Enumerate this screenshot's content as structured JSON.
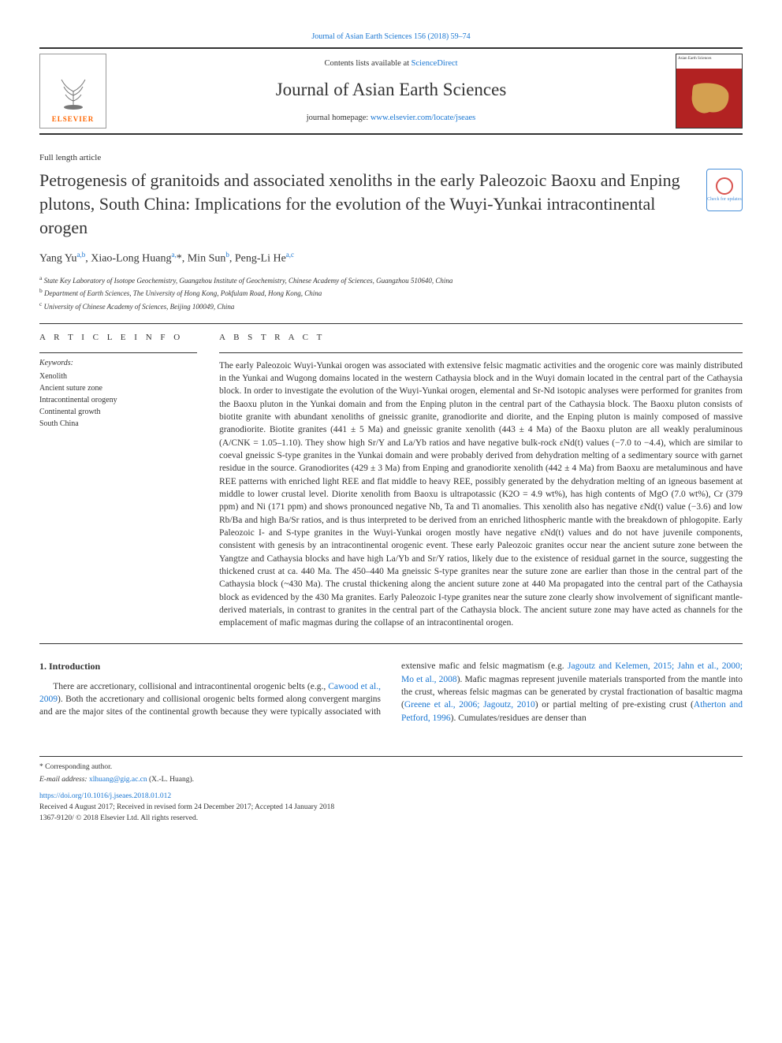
{
  "top_link_journal": "Journal of Asian Earth Sciences 156 (2018) 59–74",
  "header": {
    "contents_prefix": "Contents lists available at ",
    "contents_link": "ScienceDirect",
    "journal_name": "Journal of Asian Earth Sciences",
    "homepage_prefix": "journal homepage: ",
    "homepage_url": "www.elsevier.com/locate/jseaes",
    "publisher_logo_text": "ELSEVIER",
    "cover_label": "Asian Earth Sciences"
  },
  "article_type": "Full length article",
  "title": "Petrogenesis of granitoids and associated xenoliths in the early Paleozoic Baoxu and Enping plutons, South China: Implications for the evolution of the Wuyi-Yunkai intracontinental orogen",
  "updates_badge": "Check for updates",
  "authors_html": "Yang Yu<sup>a,b</sup>, Xiao-Long Huang<sup>a,</sup>*, Min Sun<sup>b</sup>, Peng-Li He<sup>a,c</sup>",
  "affiliations": [
    "a State Key Laboratory of Isotope Geochemistry, Guangzhou Institute of Geochemistry, Chinese Academy of Sciences, Guangzhou 510640, China",
    "b Department of Earth Sciences, The University of Hong Kong, Pokfulam Road, Hong Kong, China",
    "c University of Chinese Academy of Sciences, Beijing 100049, China"
  ],
  "info": {
    "heading": "A R T I C L E  I N F O",
    "keywords_label": "Keywords:",
    "keywords": [
      "Xenolith",
      "Ancient suture zone",
      "Intracontinental orogeny",
      "Continental growth",
      "South China"
    ]
  },
  "abstract": {
    "heading": "A B S T R A C T",
    "text": "The early Paleozoic Wuyi-Yunkai orogen was associated with extensive felsic magmatic activities and the orogenic core was mainly distributed in the Yunkai and Wugong domains located in the western Cathaysia block and in the Wuyi domain located in the central part of the Cathaysia block. In order to investigate the evolution of the Wuyi-Yunkai orogen, elemental and Sr-Nd isotopic analyses were performed for granites from the Baoxu pluton in the Yunkai domain and from the Enping pluton in the central part of the Cathaysia block. The Baoxu pluton consists of biotite granite with abundant xenoliths of gneissic granite, granodiorite and diorite, and the Enping pluton is mainly composed of massive granodiorite. Biotite granites (441 ± 5 Ma) and gneissic granite xenolith (443 ± 4 Ma) of the Baoxu pluton are all weakly peraluminous (A/CNK = 1.05–1.10). They show high Sr/Y and La/Yb ratios and have negative bulk-rock εNd(t) values (−7.0 to −4.4), which are similar to coeval gneissic S-type granites in the Yunkai domain and were probably derived from dehydration melting of a sedimentary source with garnet residue in the source. Granodiorites (429 ± 3 Ma) from Enping and granodiorite xenolith (442 ± 4 Ma) from Baoxu are metaluminous and have REE patterns with enriched light REE and flat middle to heavy REE, possibly generated by the dehydration melting of an igneous basement at middle to lower crustal level. Diorite xenolith from Baoxu is ultrapotassic (K2O = 4.9 wt%), has high contents of MgO (7.0 wt%), Cr (379 ppm) and Ni (171 ppm) and shows pronounced negative Nb, Ta and Ti anomalies. This xenolith also has negative εNd(t) value (−3.6) and low Rb/Ba and high Ba/Sr ratios, and is thus interpreted to be derived from an enriched lithospheric mantle with the breakdown of phlogopite. Early Paleozoic I- and S-type granites in the Wuyi-Yunkai orogen mostly have negative εNd(t) values and do not have juvenile components, consistent with genesis by an intracontinental orogenic event. These early Paleozoic granites occur near the ancient suture zone between the Yangtze and Cathaysia blocks and have high La/Yb and Sr/Y ratios, likely due to the existence of residual garnet in the source, suggesting the thickened crust at ca. 440 Ma. The 450–440 Ma gneissic S-type granites near the suture zone are earlier than those in the central part of the Cathaysia block (~430 Ma). The crustal thickening along the ancient suture zone at 440 Ma propagated into the central part of the Cathaysia block as evidenced by the 430 Ma granites. Early Paleozoic I-type granites near the suture zone clearly show involvement of significant mantle-derived materials, in contrast to granites in the central part of the Cathaysia block. The ancient suture zone may have acted as channels for the emplacement of mafic magmas during the collapse of an intracontinental orogen."
  },
  "section1": {
    "heading": "1. Introduction",
    "para": "There are accretionary, collisional and intracontinental orogenic belts (e.g., Cawood et al., 2009). Both the accretionary and collisional orogenic belts formed along convergent margins and are the major sites of the continental growth because they were typically associated with extensive mafic and felsic magmatism (e.g. Jagoutz and Kelemen, 2015; Jahn et al., 2000; Mo et al., 2008). Mafic magmas represent juvenile materials transported from the mantle into the crust, whereas felsic magmas can be generated by crystal fractionation of basaltic magma (Greene et al., 2006; Jagoutz, 2010) or partial melting of pre-existing crust (Atherton and Petford, 1996). Cumulates/residues are denser than",
    "refs": [
      "Cawood et al., 2009",
      "Jagoutz and Kelemen, 2015; Jahn et al., 2000; Mo et al., 2008",
      "Greene et al., 2006; Jagoutz, 2010",
      "Atherton and Petford, 1996"
    ]
  },
  "footer": {
    "corresponding": "* Corresponding author.",
    "email_label": "E-mail address: ",
    "email": "xlhuang@gig.ac.cn",
    "email_attribution": " (X.-L. Huang).",
    "doi": "https://doi.org/10.1016/j.jseaes.2018.01.012",
    "received": "Received 4 August 2017; Received in revised form 24 December 2017; Accepted 14 January 2018",
    "copyright": "1367-9120/ © 2018 Elsevier Ltd. All rights reserved."
  },
  "colors": {
    "link": "#1976d2",
    "elsevier_orange": "#ff6600",
    "cover_red": "#b22222",
    "rule": "#333333"
  }
}
